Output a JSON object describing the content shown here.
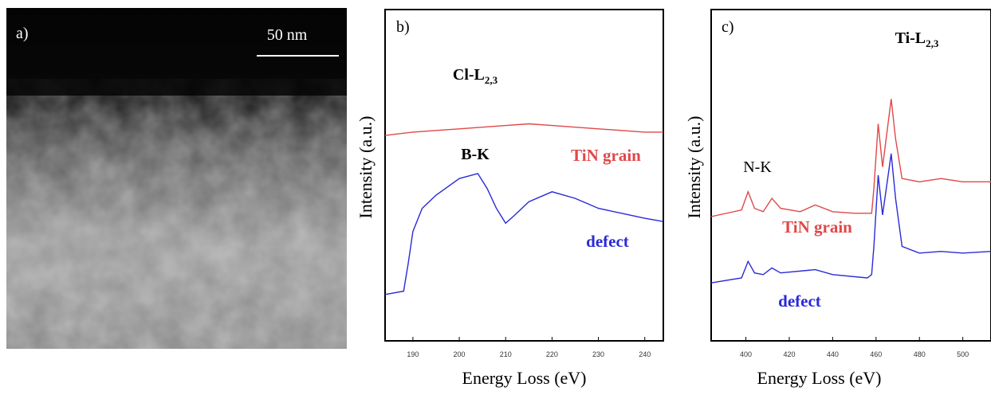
{
  "image_panel": {
    "label": "a)",
    "scale_bar": "50 nm"
  },
  "chart_data": [
    {
      "type": "line",
      "panel_label": "b)",
      "xlabel": "Energy Loss (eV)",
      "ylabel": "Intensity (a.u.)",
      "xlim": [
        184,
        244
      ],
      "xticks": [
        190,
        200,
        210,
        220,
        230,
        240
      ],
      "ylim": [
        0,
        100
      ],
      "annotations": [
        {
          "text": "Cl-L",
          "subscript": "2,3"
        },
        {
          "text": "B-K"
        }
      ],
      "series": [
        {
          "name": "TiN grain",
          "color": "#e04848",
          "x": [
            184,
            190,
            195,
            200,
            205,
            210,
            215,
            220,
            225,
            230,
            235,
            240,
            244
          ],
          "values": [
            62,
            63,
            63.5,
            64,
            64.5,
            65,
            65.5,
            65,
            64.5,
            64,
            63.5,
            63,
            63
          ]
        },
        {
          "name": "defect",
          "color": "#2a2ad8",
          "x": [
            184,
            188,
            189,
            190,
            192,
            195,
            200,
            204,
            206,
            208,
            210,
            212,
            215,
            220,
            225,
            230,
            235,
            240,
            244
          ],
          "values": [
            14,
            15,
            23.5,
            33,
            40,
            44,
            49,
            50.5,
            46,
            40,
            35.5,
            38,
            42,
            45,
            43,
            40,
            38.5,
            37,
            36
          ]
        }
      ]
    },
    {
      "type": "line",
      "panel_label": "c)",
      "xlabel": "Energy Loss (eV)",
      "ylabel": "Intensity (a.u.)",
      "xlim": [
        384,
        513
      ],
      "xticks": [
        400,
        420,
        440,
        460,
        480,
        500
      ],
      "ylim": [
        0,
        100
      ],
      "annotations": [
        {
          "text": "Ti-L",
          "subscript": "2,3"
        },
        {
          "text": "N-K"
        }
      ],
      "series": [
        {
          "name": "TiN grain",
          "color": "#e04848",
          "x": [
            384,
            398,
            401,
            404,
            408,
            412,
            416,
            425,
            432,
            440,
            450,
            458,
            459,
            461,
            463,
            467,
            469,
            472,
            480,
            490,
            500,
            513
          ],
          "values": [
            37.5,
            39.5,
            45,
            40,
            39,
            43,
            40,
            39,
            41,
            39,
            38.5,
            38.5,
            46,
            65.5,
            52.5,
            73,
            61,
            49,
            48,
            49,
            48,
            48
          ]
        },
        {
          "name": "defect",
          "color": "#2a2ad8",
          "x": [
            384,
            398,
            401,
            404,
            408,
            412,
            416,
            432,
            440,
            456,
            458,
            459,
            461,
            463,
            467,
            469,
            472,
            480,
            490,
            500,
            513
          ],
          "values": [
            17.5,
            19,
            24,
            20.5,
            20,
            22,
            20.5,
            21.5,
            20,
            19,
            20,
            28.5,
            50,
            38,
            56.5,
            43,
            28.5,
            26.5,
            27,
            26.5,
            27
          ]
        }
      ]
    }
  ]
}
